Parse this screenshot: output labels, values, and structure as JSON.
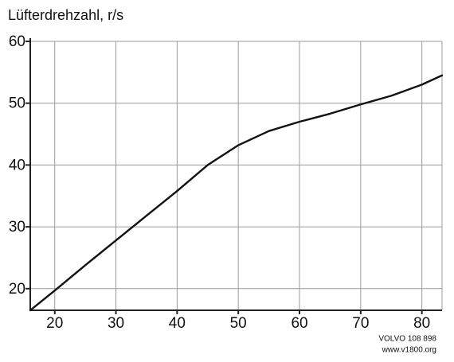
{
  "chart_data": {
    "type": "line",
    "title": "Lüfterdrehzahl, r/s",
    "x": [
      16,
      20,
      25,
      30,
      35,
      40,
      45,
      50,
      55,
      60,
      65,
      70,
      75,
      80,
      83.3
    ],
    "series": [
      {
        "name": null,
        "color": "#111111",
        "values": [
          16.5,
          19.7,
          23.8,
          27.8,
          31.8,
          35.8,
          40,
          43.2,
          45.5,
          47,
          48.3,
          49.8,
          51.2,
          53,
          54.5
        ]
      }
    ],
    "xlim": [
      16,
      83.3
    ],
    "ylim": [
      16.5,
      60
    ],
    "xticks": [
      20,
      30,
      40,
      50,
      60,
      70,
      80
    ],
    "yticks": [
      20,
      30,
      40,
      50,
      60
    ],
    "grid": true,
    "source": [
      "VOLVO 108 898",
      "www.v1800.org"
    ]
  }
}
